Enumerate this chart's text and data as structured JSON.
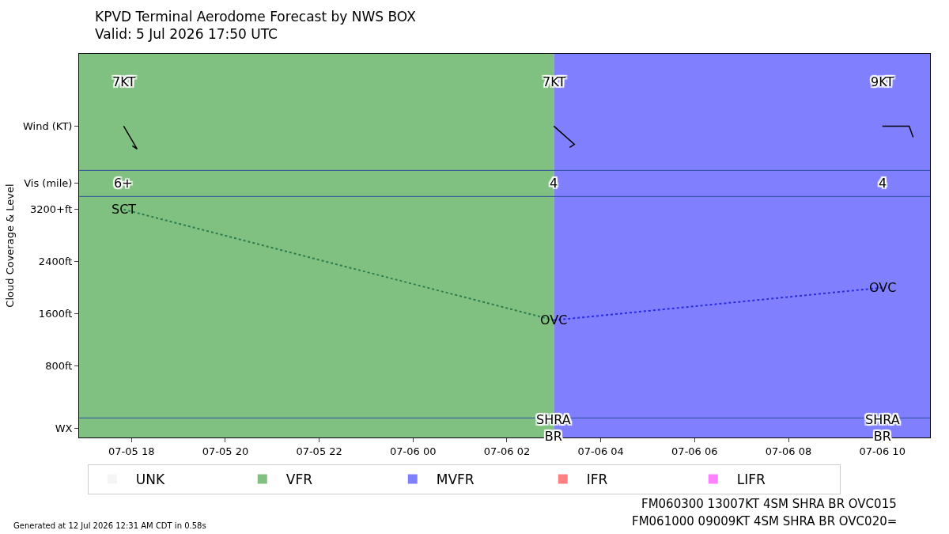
{
  "chart_data": {
    "type": "line",
    "title": "KPVD Terminal Aerodome Forecast by NWS BOX",
    "subtitle": "Valid: 5 Jul 2026 17:50 UTC",
    "ylabel": "Cloud Coverage & Level",
    "xlim": [
      "2026-07-05T16:53",
      "2026-07-06T11:01"
    ],
    "xticks": [
      {
        "value": "2026-07-05T18:00",
        "label": "07-05 18"
      },
      {
        "value": "2026-07-05T20:00",
        "label": "07-05 20"
      },
      {
        "value": "2026-07-05T22:00",
        "label": "07-05 22"
      },
      {
        "value": "2026-07-06T00:00",
        "label": "07-06 00"
      },
      {
        "value": "2026-07-06T02:00",
        "label": "07-06 02"
      },
      {
        "value": "2026-07-06T04:00",
        "label": "07-06 04"
      },
      {
        "value": "2026-07-06T06:00",
        "label": "07-06 06"
      },
      {
        "value": "2026-07-06T08:00",
        "label": "07-06 08"
      },
      {
        "value": "2026-07-06T10:00",
        "label": "07-06 10"
      }
    ],
    "ylim": [
      -300,
      5590
    ],
    "yticks": [
      {
        "value": -160,
        "label": "WX"
      },
      {
        "value": 800,
        "label": "800ft"
      },
      {
        "value": 1600,
        "label": "1600ft"
      },
      {
        "value": 2400,
        "label": "2400ft"
      },
      {
        "value": 3200,
        "label": "3200+ft"
      },
      {
        "value": 3600,
        "label": "Vis (mile)"
      },
      {
        "value": 4480,
        "label": "Wind (KT)"
      }
    ],
    "legend": "bottom left",
    "marker": "none",
    "line_style": "dotted",
    "series": [
      {
        "color": "#2e7d4f",
        "x": [
          "2026-07-05T17:50",
          "2026-07-06T03:00"
        ],
        "values": [
          3200,
          1500
        ]
      },
      {
        "color": "#2a2ae0",
        "x": [
          "2026-07-06T03:00",
          "2026-07-06T10:00"
        ],
        "values": [
          1500,
          2000
        ]
      },
      {
        "name": "UNK",
        "color": "#f5f5f5"
      },
      {
        "name": "VFR",
        "color": "#80c080"
      },
      {
        "name": "MVFR",
        "color": "#8080ff"
      },
      {
        "name": "IFR",
        "color": "#ff8080"
      },
      {
        "name": "LIFR",
        "color": "#ff80ff"
      }
    ],
    "bands": [
      {
        "axis": "x",
        "from": "2026-07-05T16:53",
        "to": "2026-07-06T03:00",
        "color": "#80c080"
      },
      {
        "axis": "x",
        "from": "2026-07-06T03:00",
        "to": "2026-07-06T11:01",
        "color": "#8080ff"
      }
    ],
    "ref_lines": [
      {
        "axis": "y",
        "value": 0,
        "color": "#2f4f9f"
      },
      {
        "axis": "y",
        "value": 3400,
        "color": "#2f4f9f"
      },
      {
        "axis": "y",
        "value": 3800,
        "color": "#2f4f9f"
      }
    ],
    "annotations": [
      {
        "text": "SCT",
        "x": "2026-07-05T17:50",
        "y": 3200
      },
      {
        "text": "OVC",
        "x": "2026-07-06T03:00",
        "y": 1500
      },
      {
        "text": "OVC",
        "x": "2026-07-06T10:00",
        "y": 2000
      },
      "7KT",
      "7KT",
      "9KT",
      "6+",
      "4",
      "4",
      "SHRA\nBR",
      "SHRA\nBR",
      "FM060300 13007KT 4SM SHRA BR OVC015",
      "FM061000 09009KT 4SM SHRA BR OVC020=",
      "Generated at 12 Jul 2026 12:31 AM CDT in 0.58s"
    ]
  }
}
